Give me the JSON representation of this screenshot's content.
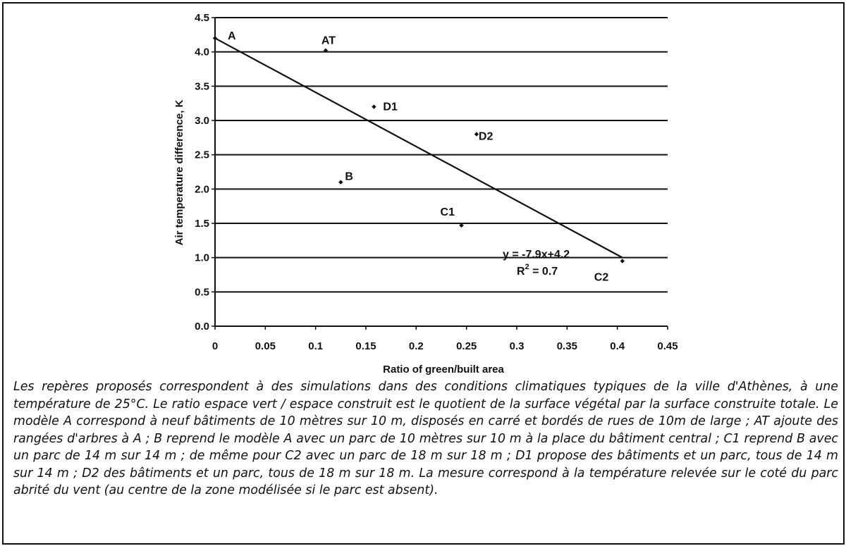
{
  "chart_data": {
    "type": "scatter",
    "xlabel": "Ratio of green/built area",
    "ylabel": "Air temperature difference, K",
    "xlim": [
      0,
      0.45
    ],
    "ylim": [
      0,
      4.5
    ],
    "x_ticks": [
      "0",
      "0.05",
      "0.1",
      "0.15",
      "0.2",
      "0.25",
      "0.3",
      "0.35",
      "0.4",
      "0.45"
    ],
    "y_ticks": [
      "0.0",
      "0.5",
      "1.0",
      "1.5",
      "2.0",
      "2.5",
      "3.0",
      "3.5",
      "4.0",
      "4.5"
    ],
    "grid": "horizontal",
    "points": [
      {
        "label": "A",
        "x": 0.0,
        "y": 4.2
      },
      {
        "label": "AT",
        "x": 0.11,
        "y": 4.02
      },
      {
        "label": "D1",
        "x": 0.158,
        "y": 3.2
      },
      {
        "label": "D2",
        "x": 0.26,
        "y": 2.8
      },
      {
        "label": "B",
        "x": 0.125,
        "y": 2.1
      },
      {
        "label": "C1",
        "x": 0.245,
        "y": 1.47
      },
      {
        "label": "C2",
        "x": 0.405,
        "y": 0.95
      }
    ],
    "trendline": {
      "slope": -7.9,
      "intercept": 4.2,
      "x_range": [
        0.0,
        0.405
      ]
    },
    "equation_label": "y = -7.9x+4.2",
    "r2_label": "R",
    "r2_sup": "2",
    "r2_value": " = 0.7"
  },
  "caption": "Les repères proposés correspondent à des simulations dans des conditions climatiques typiques de la ville d'Athènes, à une température de 25°C. Le ratio espace vert / espace construit est le quotient de la surface végétal par la surface construite totale. Le modèle A correspond à neuf bâtiments de 10 mètres sur 10 m, disposés en carré et bordés de rues de 10m de large ; AT ajoute des rangées d'arbres à A ; B reprend le modèle A avec un parc de 10 mètres sur 10 m à la place du bâtiment central ; C1 reprend B avec un parc de 14 m sur 14 m ; de même pour C2 avec un parc de 18 m sur 18 m ; D1 propose des bâtiments et un parc, tous de 14 m sur 14 m ; D2 des bâtiments et un parc, tous de 18 m sur 18 m. La mesure correspond à la température relevée sur le coté du parc abrité du vent (au centre de la zone modélisée si le parc est absent)."
}
